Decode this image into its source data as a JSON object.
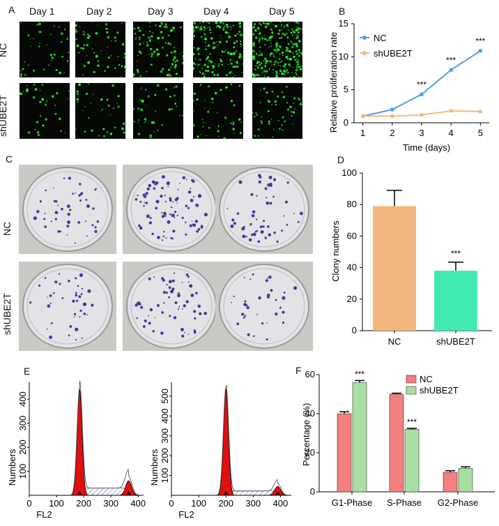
{
  "panel_letters": [
    "A",
    "B",
    "C",
    "D",
    "E",
    "F"
  ],
  "panelA": {
    "days": [
      "Day 1",
      "Day 2",
      "Day 3",
      "Day 4",
      "Day 5"
    ],
    "rows": [
      "NC",
      "shUBE2T"
    ]
  },
  "panelC": {
    "rows": [
      "NC",
      "shUBE2T"
    ]
  },
  "chart_data": [
    {
      "panel": "B",
      "type": "line",
      "xlabel": "Time (days)",
      "ylabel": "Relative proliferation rate",
      "x": [
        1,
        2,
        3,
        4,
        5
      ],
      "xlim": [
        0.7,
        5.3
      ],
      "ylim": [
        0,
        15
      ],
      "yticks": [
        0,
        5,
        10,
        15
      ],
      "series": [
        {
          "name": "NC",
          "color": "#4da0e6",
          "values": [
            1.0,
            2.0,
            4.3,
            8.0,
            10.9
          ]
        },
        {
          "name": "shUBE2T",
          "color": "#f5b97c",
          "values": [
            1.0,
            1.0,
            1.2,
            1.8,
            1.7
          ]
        }
      ],
      "annotations": [
        {
          "x": 3,
          "text": "***"
        },
        {
          "x": 4,
          "text": "***"
        },
        {
          "x": 5,
          "text": "***"
        }
      ],
      "legend": "top-left"
    },
    {
      "panel": "D",
      "type": "bar",
      "ylabel": "Clony numbers",
      "categories": [
        "NC",
        "shUBE2T"
      ],
      "values": [
        79,
        38
      ],
      "errors": [
        10,
        5.5
      ],
      "colors": [
        "#f1b77e",
        "#42eab3"
      ],
      "ylim": [
        0,
        100
      ],
      "yticks": [
        0,
        20,
        40,
        60,
        80,
        100
      ],
      "annotations": [
        {
          "category": "shUBE2T",
          "text": "***"
        }
      ]
    },
    {
      "panel": "E",
      "type": "area",
      "subtype": "histogram",
      "xlabel": "FL2",
      "ylabel": "Numbers",
      "histograms": [
        {
          "xlim": [
            0,
            420
          ],
          "xticks": [
            0,
            100,
            200,
            300,
            400
          ],
          "yticks": [
            100,
            200,
            300,
            400
          ],
          "ylim": [
            0,
            470
          ],
          "g1_peak": {
            "x": 185,
            "height": 440
          },
          "g2_peak": {
            "x": 365,
            "height": 60
          },
          "s_level": 30
        },
        {
          "xlim": [
            0,
            440
          ],
          "xticks": [
            0,
            100,
            200,
            300,
            400
          ],
          "yticks": [
            100,
            200,
            300,
            400,
            500
          ],
          "ylim": [
            0,
            570
          ],
          "g1_peak": {
            "x": 200,
            "height": 535
          },
          "g2_peak": {
            "x": 390,
            "height": 45
          },
          "s_level": 22
        }
      ]
    },
    {
      "panel": "F",
      "type": "bar",
      "ylabel": "Percentage (%)",
      "categories": [
        "G1-Phase",
        "S-Phase",
        "G2-Phase"
      ],
      "series": [
        {
          "name": "NC",
          "color": "#f48080",
          "values": [
            40,
            50,
            10
          ],
          "errors": [
            1,
            0.5,
            0.8
          ]
        },
        {
          "name": "shUBE2T",
          "color": "#a9dfa2",
          "values": [
            56,
            32,
            12
          ],
          "errors": [
            1,
            0.5,
            0.8
          ]
        }
      ],
      "ylim": [
        0,
        60
      ],
      "yticks": [
        0,
        20,
        40,
        60
      ],
      "annotations": [
        {
          "category": "G1-Phase",
          "series": "shUBE2T",
          "text": "***"
        },
        {
          "category": "S-Phase",
          "series": "shUBE2T",
          "text": "***"
        }
      ],
      "legend": "top-right"
    }
  ]
}
